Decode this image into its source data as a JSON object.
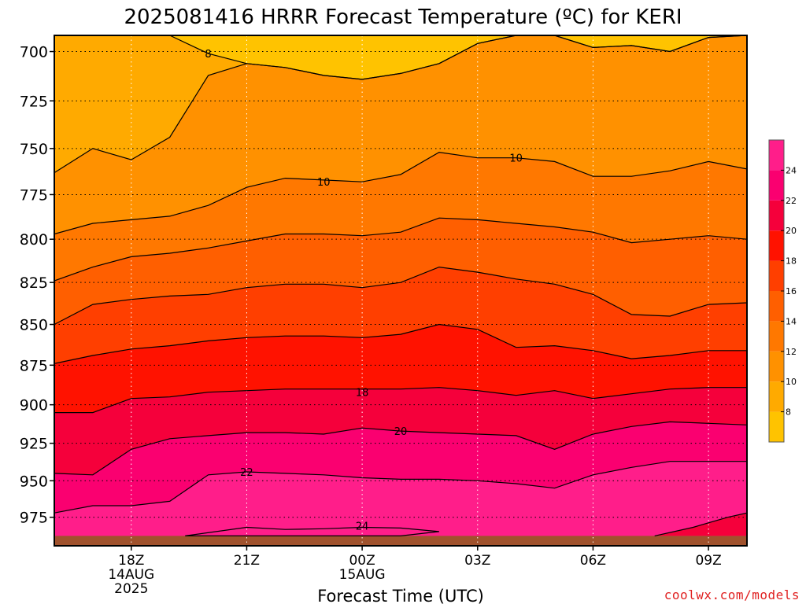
{
  "chart_data": {
    "type": "contour",
    "title": "2025081416 HRRR Forecast Temperature (ºC) for KERI",
    "xlabel": "Forecast Time (UTC)",
    "x_hours": [
      16,
      17,
      18,
      19,
      20,
      21,
      22,
      23,
      24,
      25,
      26,
      27,
      28,
      29,
      30,
      31,
      32,
      33,
      34
    ],
    "x_range": [
      16,
      34
    ],
    "x_ticks": [
      {
        "hour": 18,
        "lines": [
          "18Z",
          "14AUG",
          "2025"
        ]
      },
      {
        "hour": 21,
        "lines": [
          "21Z"
        ]
      },
      {
        "hour": 24,
        "lines": [
          "00Z",
          "15AUG"
        ]
      },
      {
        "hour": 27,
        "lines": [
          "03Z"
        ]
      },
      {
        "hour": 30,
        "lines": [
          "06Z"
        ]
      },
      {
        "hour": 33,
        "lines": [
          "09Z"
        ]
      }
    ],
    "y_ticks": [
      700,
      725,
      750,
      775,
      800,
      825,
      850,
      875,
      900,
      925,
      950,
      975
    ],
    "y_range": [
      692,
      995
    ],
    "y_scale": "log-pressure (inverted)",
    "ground_pressure": 988,
    "grid": true,
    "levels": [
      8,
      10,
      12,
      14,
      16,
      18,
      20,
      22,
      24
    ],
    "colorbar_labels": [
      "8",
      "10",
      "12",
      "14",
      "16",
      "18",
      "20",
      "22",
      "24"
    ],
    "colors": [
      "#ffc300",
      "#ffaa00",
      "#ff9100",
      "#ff7800",
      "#ff5f00",
      "#ff3f00",
      "#ff1200",
      "#f5003b",
      "#fa0070",
      "#ff1e8a"
    ],
    "ground_color": "#a0522d",
    "contours": [
      {
        "level": 8,
        "label": "8",
        "label_at": [
          20.0,
          701
        ],
        "p": [
          692,
          692,
          692,
          692,
          701,
          706,
          708,
          712,
          714,
          711,
          706,
          696,
          692,
          692,
          698,
          697,
          700,
          693,
          692
        ]
      },
      {
        "level": 10,
        "label": "10",
        "label_at": [
          23.0,
          768
        ],
        "p": [
          763,
          750,
          756,
          744,
          712,
          706,
          708,
          712,
          714,
          711,
          706,
          696,
          692,
          692,
          698,
          697,
          700,
          693,
          692
        ]
      },
      {
        "level": 10,
        "label": "10",
        "label_at": [
          28.0,
          755
        ],
        "p": [
          797,
          791,
          789,
          787,
          781,
          771,
          766,
          767,
          768,
          764,
          752,
          755,
          755,
          757,
          765,
          765,
          762,
          757,
          761
        ]
      },
      {
        "level": 12,
        "label": "",
        "p": [
          824,
          816,
          810,
          808,
          805,
          801,
          797,
          797,
          798,
          796,
          788,
          789,
          791,
          793,
          796,
          802,
          800,
          798,
          800
        ]
      },
      {
        "level": 14,
        "label": "",
        "p": [
          850,
          838,
          835,
          833,
          832,
          828,
          826,
          826,
          828,
          825,
          816,
          819,
          823,
          826,
          832,
          844,
          845,
          838,
          837
        ]
      },
      {
        "level": 16,
        "label": "",
        "p": [
          874,
          869,
          865,
          863,
          860,
          858,
          857,
          857,
          858,
          856,
          850,
          853,
          864,
          863,
          866,
          871,
          869,
          866,
          866
        ]
      },
      {
        "level": 18,
        "label": "18",
        "label_at": [
          24.0,
          892
        ],
        "p": [
          905,
          905,
          896,
          895,
          892,
          891,
          890,
          890,
          890,
          890,
          889,
          891,
          894,
          891,
          896,
          893,
          890,
          889,
          889
        ]
      },
      {
        "level": 20,
        "label": "20",
        "label_at": [
          25.0,
          917
        ],
        "p": [
          945,
          946,
          929,
          922,
          920,
          918,
          918,
          919,
          915,
          917,
          918,
          919,
          920,
          929,
          919,
          914,
          911,
          912,
          913
        ]
      },
      {
        "level": 22,
        "label": "22",
        "label_at": [
          21.0,
          944
        ],
        "p": [
          972,
          967,
          967,
          964,
          946,
          944,
          945,
          946,
          948,
          949,
          949,
          950,
          952,
          955,
          946,
          941,
          937,
          937,
          937
        ]
      },
      {
        "level": 24,
        "label": "24",
        "label_at": [
          24.0,
          981
        ],
        "p_top": [
          [
            19.4,
            988
          ],
          [
            21.0,
            982
          ],
          [
            22.0,
            983.5
          ],
          [
            23.0,
            983
          ],
          [
            24.0,
            982
          ],
          [
            25.0,
            982.5
          ],
          [
            26.0,
            985
          ]
        ],
        "p_bot": [
          [
            26.0,
            985
          ],
          [
            25.0,
            988
          ],
          [
            19.4,
            988
          ]
        ]
      }
    ],
    "warm_patch": [
      [
        31.6,
        988
      ],
      [
        32.6,
        982
      ],
      [
        33.5,
        975
      ],
      [
        34,
        972
      ],
      [
        34,
        988
      ]
    ]
  },
  "credit": "coolwx.com/models"
}
